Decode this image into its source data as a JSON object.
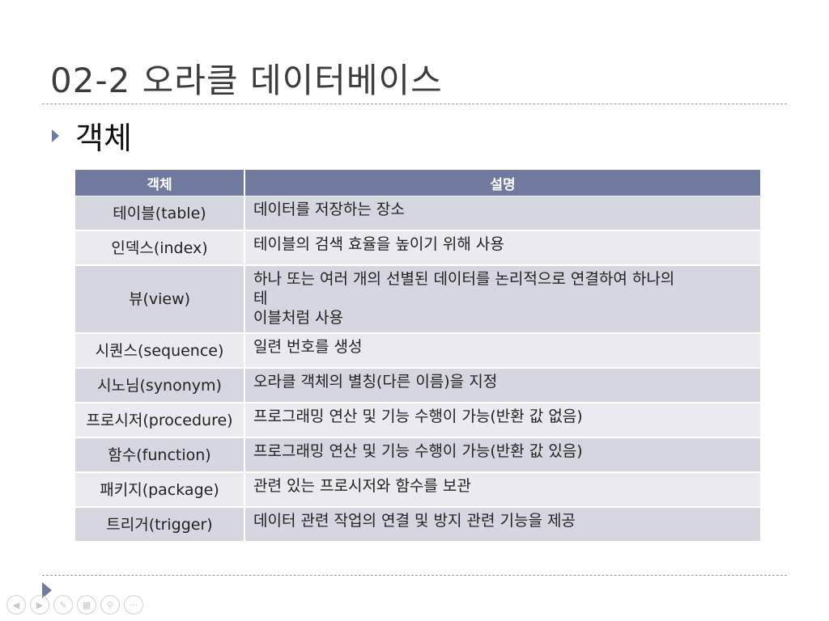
{
  "slide": {
    "title": "02-2 오라클 데이터베이스",
    "bullet": "객체"
  },
  "table": {
    "headers": [
      "객체",
      "설명"
    ],
    "rows": [
      {
        "name": "테이블(table)",
        "desc": [
          "데이터를 저장하는 장소"
        ]
      },
      {
        "name": "인덱스(index)",
        "desc": [
          "테이블의 검색 효율을 높이기 위해 사용"
        ]
      },
      {
        "name": "뷰(view)",
        "desc": [
          "하나 또는 여러 개의 선별된 데이터를 논리적으로 연결하여 하나의",
          "테",
          "이블처럼 사용"
        ]
      },
      {
        "name": "시퀀스(sequence)",
        "desc": [
          "일련 번호를 생성"
        ]
      },
      {
        "name": "시노님(synonym)",
        "desc": [
          "오라클 객체의 별칭(다른 이름)을 지정"
        ]
      },
      {
        "name": "프로시저(procedure)",
        "desc": [
          "프로그래밍 연산 및 기능 수행이 가능(반환 값 없음)"
        ]
      },
      {
        "name": "함수(function)",
        "desc": [
          "프로그래밍 연산 및 기능 수행이 가능(반환 값 있음)"
        ]
      },
      {
        "name": "패키지(package)",
        "desc": [
          "관련 있는 프로시저와 함수를 보관"
        ]
      },
      {
        "name": "트리거(trigger)",
        "desc": [
          "데이터 관련 작업의 연결 및 방지 관련 기능을 제공"
        ]
      }
    ]
  },
  "toolbar": {
    "buttons": [
      {
        "name": "previous-slide-button",
        "icon": "arrow-left-icon",
        "glyph": "◀"
      },
      {
        "name": "next-slide-button",
        "icon": "arrow-right-icon",
        "glyph": "▶"
      },
      {
        "name": "pen-button",
        "icon": "pen-icon",
        "glyph": "✎"
      },
      {
        "name": "slides-grid-button",
        "icon": "grid-icon",
        "glyph": "▦"
      },
      {
        "name": "zoom-button",
        "icon": "magnifier-icon",
        "glyph": "⚲"
      },
      {
        "name": "more-options-button",
        "icon": "more-icon",
        "glyph": "···"
      }
    ]
  },
  "colors": {
    "accent": "#6f7a9e",
    "row_odd": "#d5d6df",
    "row_even": "#eaeaf0"
  }
}
